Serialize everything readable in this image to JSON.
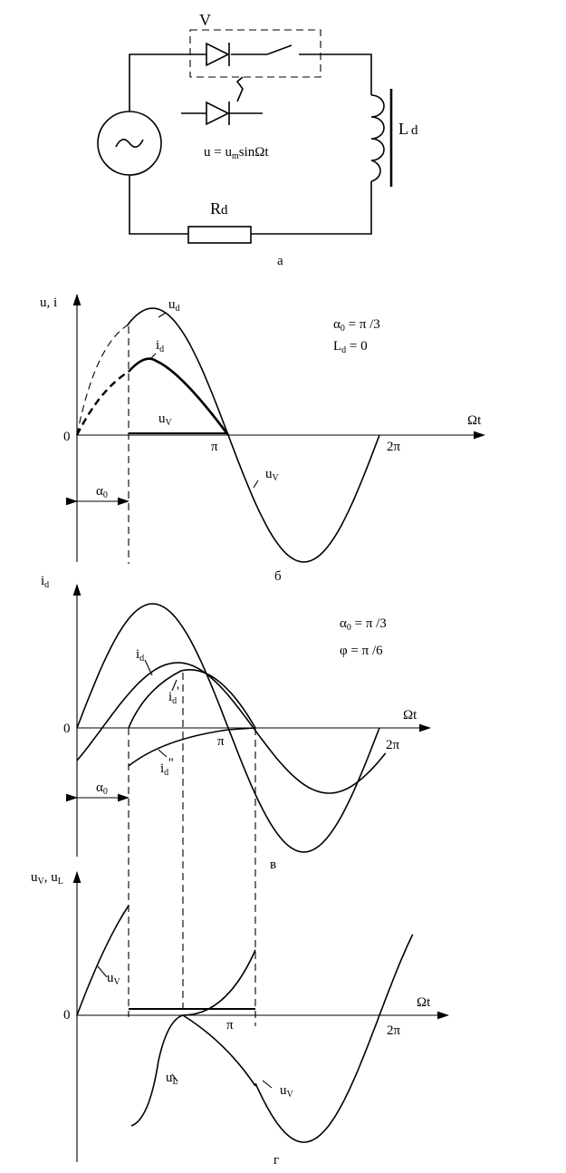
{
  "circuit": {
    "switch_label": "V",
    "inductor": {
      "main": "L",
      "sub": "d"
    },
    "resistor": {
      "main": "R",
      "sub": "d"
    },
    "equation": {
      "a": "u = u",
      "sub": "m",
      "b": "sinΩt"
    },
    "caption": "а"
  },
  "panel_b": {
    "y_axis": "u, i",
    "x_axis": "Ωt",
    "origin": "0",
    "pi": "π",
    "two_pi": "2π",
    "param_1": {
      "main": "α",
      "sub": "0",
      "rest": " = π /3"
    },
    "param_2": {
      "main": "L",
      "sub": "d",
      "rest": " = 0"
    },
    "ud": {
      "main": "u",
      "sub": "d"
    },
    "id": {
      "main": "i",
      "sub": "d"
    },
    "uv_1": {
      "main": "u",
      "sub": "V"
    },
    "uv_2": {
      "main": "u",
      "sub": "V"
    },
    "alpha": {
      "main": "α",
      "sub": "0"
    },
    "caption": "б"
  },
  "panel_v": {
    "y_axis": {
      "main": "i",
      "sub": "d"
    },
    "x_axis": "Ωt",
    "origin": "0",
    "pi": "π",
    "two_pi": "2π",
    "param_1": {
      "main": "α",
      "sub": "0",
      "rest": " = π /3"
    },
    "param_2": "φ = π /6",
    "id": {
      "main": "i",
      "sub": "d"
    },
    "id_1": {
      "main": "i",
      "sub": "d",
      "mark": "'"
    },
    "id_2": {
      "main": "i",
      "sub": "d",
      "mark": "''"
    },
    "alpha": {
      "main": "α",
      "sub": "0"
    },
    "caption": "в"
  },
  "panel_g": {
    "y_axis": {
      "a": "u",
      "sub1": "V",
      "b": ", u",
      "sub2": "L"
    },
    "x_axis": "Ωt",
    "origin": "0",
    "pi": "π",
    "two_pi": "2π",
    "uv_1": {
      "main": "u",
      "sub": "V"
    },
    "uv_2": {
      "main": "u",
      "sub": "V"
    },
    "ul": {
      "main": "u",
      "sub": "L"
    },
    "caption": "г"
  }
}
